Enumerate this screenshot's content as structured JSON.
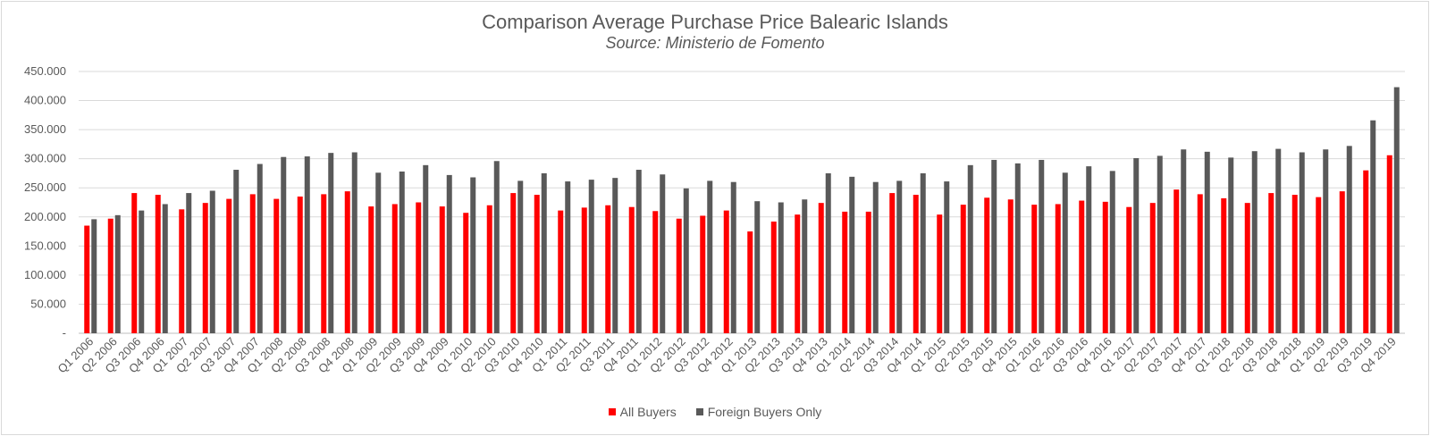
{
  "chart_data": {
    "type": "bar",
    "title": "Comparison Average Purchase Price Balearic Islands",
    "subtitle": "Source: Ministerio de Fomento",
    "xlabel": "",
    "ylabel": "",
    "ylim": [
      0,
      450000
    ],
    "yticks": [
      0,
      50000,
      100000,
      150000,
      200000,
      250000,
      300000,
      350000,
      400000,
      450000
    ],
    "ytick_labels": [
      "-",
      "50.000",
      "100.000",
      "150.000",
      "200.000",
      "250.000",
      "300.000",
      "350.000",
      "400.000",
      "450.000"
    ],
    "grid": true,
    "legend_position": "bottom",
    "categories": [
      "Q1 2006",
      "Q2 2006",
      "Q3 2006",
      "Q4 2006",
      "Q1 2007",
      "Q2 2007",
      "Q3 2007",
      "Q4 2007",
      "Q1 2008",
      "Q2 2008",
      "Q3 2008",
      "Q4 2008",
      "Q1 2009",
      "Q2 2009",
      "Q3 2009",
      "Q4 2009",
      "Q1 2010",
      "Q2 2010",
      "Q3 2010",
      "Q4 2010",
      "Q1 2011",
      "Q2 2011",
      "Q3 2011",
      "Q4 2011",
      "Q1 2012",
      "Q2 2012",
      "Q3 2012",
      "Q4 2012",
      "Q1 2013",
      "Q2 2013",
      "Q3 2013",
      "Q4 2013",
      "Q1 2014",
      "Q2 2014",
      "Q3 2014",
      "Q4 2014",
      "Q1 2015",
      "Q2 2015",
      "Q3 2015",
      "Q4 2015",
      "Q1 2016",
      "Q2 2016",
      "Q3 2016",
      "Q4 2016",
      "Q1 2017",
      "Q2 2017",
      "Q3 2017",
      "Q4 2017",
      "Q1 2018",
      "Q2 2018",
      "Q3 2018",
      "Q4 2018",
      "Q1 2019",
      "Q2 2019",
      "Q3 2019",
      "Q4 2019"
    ],
    "series": [
      {
        "name": "All Buyers",
        "color": "#ff0000",
        "values": [
          185000,
          197000,
          241000,
          238000,
          213000,
          224000,
          231000,
          239000,
          231000,
          235000,
          239000,
          244000,
          218000,
          222000,
          225000,
          218000,
          207000,
          220000,
          241000,
          238000,
          211000,
          216000,
          220000,
          217000,
          210000,
          197000,
          202000,
          211000,
          175000,
          192000,
          204000,
          224000,
          209000,
          209000,
          241000,
          238000,
          204000,
          221000,
          233000,
          230000,
          221000,
          222000,
          228000,
          226000,
          217000,
          224000,
          247000,
          239000,
          232000,
          224000,
          241000,
          238000,
          234000,
          244000,
          280000,
          306000
        ]
      },
      {
        "name": "Foreign Buyers Only",
        "color": "#595959",
        "values": [
          196000,
          203000,
          211000,
          222000,
          241000,
          245000,
          281000,
          291000,
          303000,
          304000,
          310000,
          311000,
          276000,
          278000,
          289000,
          272000,
          268000,
          296000,
          262000,
          275000,
          261000,
          264000,
          267000,
          281000,
          273000,
          249000,
          262000,
          260000,
          227000,
          225000,
          230000,
          275000,
          269000,
          260000,
          262000,
          275000,
          261000,
          289000,
          298000,
          292000,
          298000,
          276000,
          287000,
          279000,
          301000,
          305000,
          316000,
          312000,
          302000,
          313000,
          317000,
          311000,
          316000,
          322000,
          366000,
          423000
        ]
      }
    ]
  }
}
